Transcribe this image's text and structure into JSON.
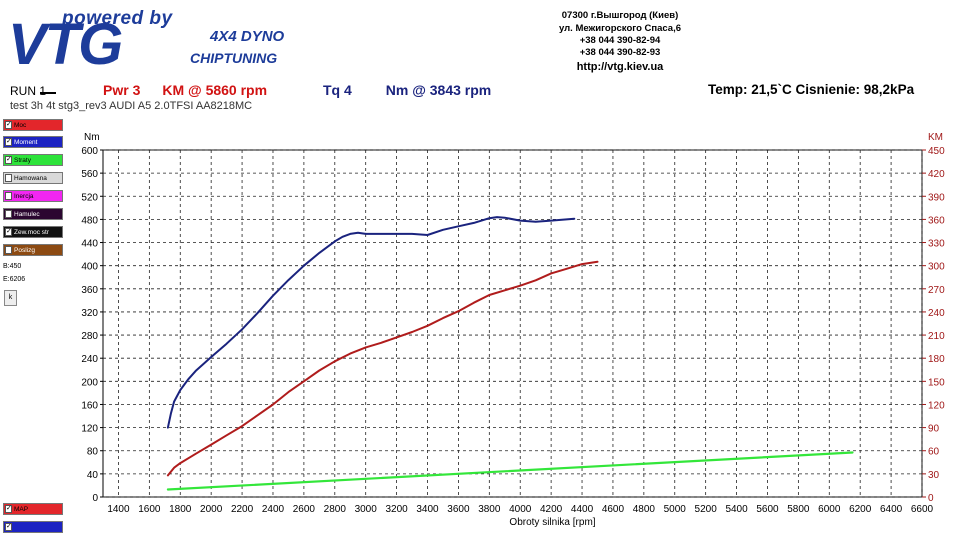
{
  "logo": {
    "powered_by": "powered by",
    "brand": "VTG",
    "line1": "4X4 DYNO",
    "line2": "CHIPTUNING"
  },
  "address": {
    "line1": "07300 г.Вышгород (Киев)",
    "line2": "ул. Межигорского Спаса,6",
    "phone1": "+38 044 390-82-94",
    "phone2": "+38 044 390-82-93",
    "website": "http://vtg.kiev.ua"
  },
  "header": {
    "run": "RUN 1",
    "pwr_label": "Pwr  3",
    "pwr_value": "KM @ 5860 rpm",
    "tq_label": "Tq 4",
    "tq_value": "Nm @ 3843 rpm",
    "conditions": "Temp: 21,5`C   Cisnienie: 98,2kPa",
    "test_line": "test   3h 4t stg3_rev3 AUDI A5 2.0TFSI AA8218MC"
  },
  "sidebar": {
    "items": [
      {
        "label": "Moc",
        "checked": true,
        "color": "#e3262b"
      },
      {
        "label": "Moment",
        "checked": true,
        "color": "#1c23c2"
      },
      {
        "label": "Straty",
        "checked": true,
        "color": "#2de33a"
      },
      {
        "label": "Hamowana",
        "checked": false,
        "color": "#d9d9d9"
      },
      {
        "label": "Inercja",
        "checked": false,
        "color": "#f226f2"
      },
      {
        "label": "Hamulec",
        "checked": false,
        "color": "#2b0630"
      },
      {
        "label": "Zew.moc str",
        "checked": true,
        "color": "#111111"
      },
      {
        "label": "Poslizg",
        "checked": false,
        "color": "#8c4a12"
      }
    ],
    "b_value": "B:450",
    "e_value": "E:6206",
    "k_button": "k",
    "bottom_items": [
      {
        "label": "MAP",
        "checked": true,
        "color": "#e3262b"
      },
      {
        "label": "",
        "checked": true,
        "color": "#1c23c2"
      }
    ]
  },
  "chart_data": {
    "type": "line",
    "xlabel": "Obroty silnika [rpm]",
    "ylabel_left": "Nm",
    "ylabel_right": "KM",
    "xlim": [
      1300,
      6600
    ],
    "ylim_left": [
      0,
      600
    ],
    "ylim_right": [
      0,
      450
    ],
    "x_ticks": [
      1400,
      1600,
      1800,
      2000,
      2200,
      2400,
      2600,
      2800,
      3000,
      3200,
      3400,
      3600,
      3800,
      4000,
      4200,
      4400,
      4600,
      4800,
      5000,
      5200,
      5400,
      5600,
      5800,
      6000,
      6200,
      6400,
      6600
    ],
    "y_left_ticks": [
      0,
      40,
      80,
      120,
      160,
      200,
      240,
      280,
      320,
      360,
      400,
      440,
      480,
      520,
      560,
      600
    ],
    "y_right_ticks": [
      0,
      30,
      60,
      90,
      120,
      150,
      180,
      210,
      240,
      270,
      300,
      330,
      360,
      390,
      420,
      450
    ],
    "grid": true,
    "series": [
      {
        "axis": "left",
        "color": "#1a237e",
        "x": [
          1720,
          1740,
          1760,
          1800,
          1850,
          1900,
          1950,
          2000,
          2100,
          2200,
          2300,
          2400,
          2500,
          2600,
          2700,
          2800,
          2850,
          2900,
          2950,
          3000,
          3100,
          3200,
          3300,
          3400,
          3500,
          3600,
          3700,
          3800,
          3850,
          3900,
          4000,
          4100,
          4200,
          4300,
          4350
        ],
        "y": [
          120,
          145,
          165,
          185,
          203,
          218,
          230,
          242,
          265,
          290,
          318,
          348,
          375,
          400,
          422,
          442,
          450,
          455,
          457,
          455,
          455,
          455,
          455,
          453,
          462,
          468,
          474,
          482,
          484,
          483,
          478,
          476,
          478,
          480,
          481
        ]
      },
      {
        "axis": "right",
        "color": "#b01c1c",
        "x": [
          1720,
          1760,
          1800,
          1900,
          2000,
          2100,
          2200,
          2300,
          2400,
          2500,
          2600,
          2700,
          2800,
          2900,
          3000,
          3100,
          3200,
          3300,
          3400,
          3500,
          3600,
          3700,
          3800,
          3900,
          4000,
          4100,
          4200,
          4300,
          4400,
          4500
        ],
        "y": [
          28,
          38,
          44,
          56,
          68,
          80,
          92,
          106,
          120,
          136,
          150,
          164,
          176,
          186,
          194,
          200,
          207,
          214,
          222,
          232,
          241,
          252,
          262,
          268,
          274,
          281,
          290,
          296,
          302,
          305
        ]
      },
      {
        "axis": "left",
        "color": "#33e63a",
        "x": [
          1720,
          6150
        ],
        "y": [
          13,
          77
        ]
      }
    ]
  }
}
